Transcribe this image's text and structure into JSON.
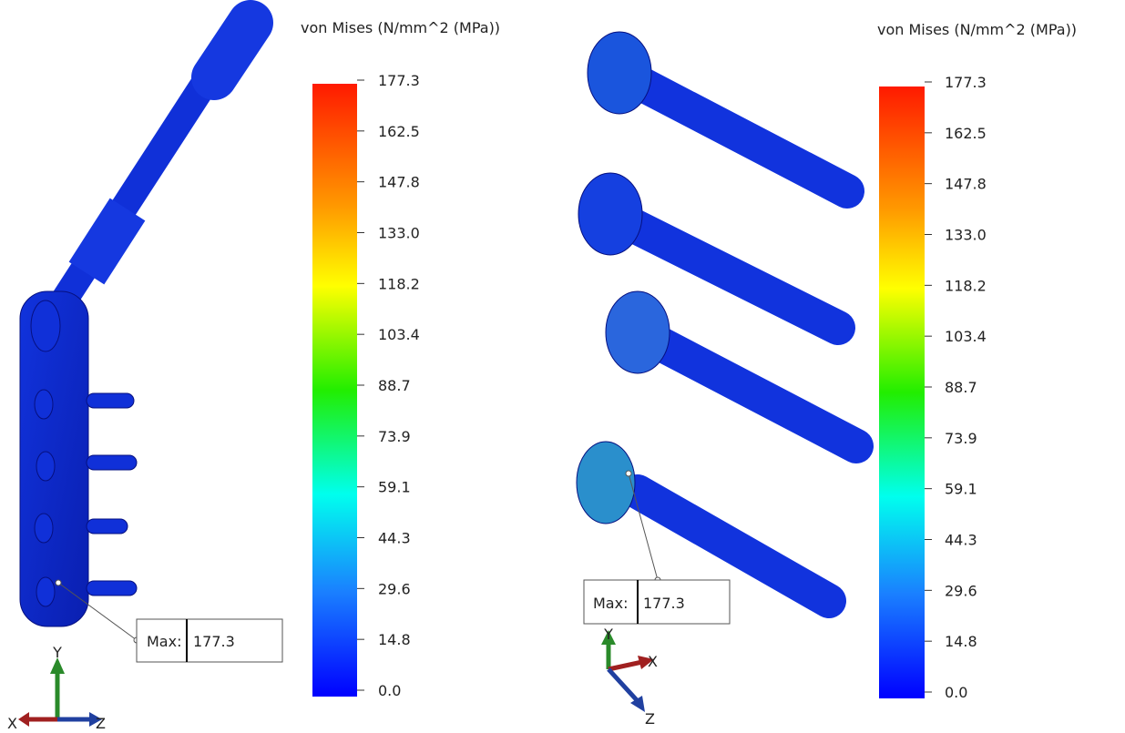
{
  "panels": [
    {
      "legend": {
        "title": "von Mises (N/mm^2 (MPa))",
        "ticks": [
          "177.3",
          "162.5",
          "147.8",
          "133.0",
          "118.2",
          "103.4",
          "88.7",
          "73.9",
          "59.1",
          "44.3",
          "29.6",
          "14.8",
          "0.0"
        ]
      },
      "probe": {
        "label": "Max:",
        "value": "177.3"
      },
      "triad": {
        "x": "X",
        "y": "Y",
        "z": "Z"
      }
    },
    {
      "legend": {
        "title": "von Mises (N/mm^2 (MPa))",
        "ticks": [
          "177.3",
          "162.5",
          "147.8",
          "133.0",
          "118.2",
          "103.4",
          "88.7",
          "73.9",
          "59.1",
          "44.3",
          "29.6",
          "14.8",
          "0.0"
        ]
      },
      "probe": {
        "label": "Max:",
        "value": "177.3"
      },
      "triad": {
        "x": "X",
        "y": "Y",
        "z": "Z"
      }
    }
  ]
}
